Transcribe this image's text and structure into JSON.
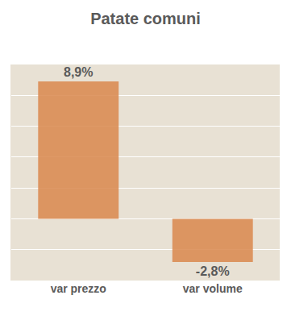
{
  "chart_data": {
    "type": "bar",
    "title": "Patate comuni",
    "categories": [
      "var prezzo",
      "var volume"
    ],
    "values": [
      8.9,
      -2.8
    ],
    "value_labels": [
      "8,9%",
      "-2,8%"
    ],
    "data_labels": true,
    "color": "#d9874c",
    "ylim": [
      -4,
      10
    ],
    "yticks": [
      -4,
      -2,
      0,
      2,
      4,
      6,
      8,
      10
    ],
    "grid": true,
    "tick_labels": "x"
  }
}
